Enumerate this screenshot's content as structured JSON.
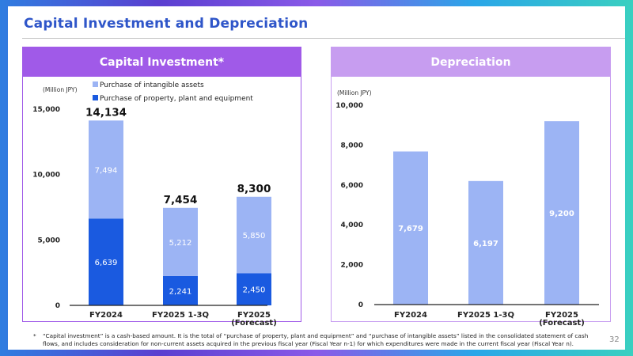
{
  "page_title": "Capital Investment and Depreciation",
  "page_number": "32",
  "footnote_marker": "*",
  "footnote": "“Capital investment” is a cash-based amount. It is the total of “purchase of property, plant and equipment” and “purchase of intangible assets” listed in the consolidated statement of cash flows, and includes consideration for non-current assets acquired in the previous fiscal year (Fiscal Year n-1) for which expenditures were made in the current fiscal year (Fiscal Year n).",
  "colors": {
    "title": "#2f56c9",
    "ppe": "#1a5ae0",
    "intangible": "#9cb4f4",
    "depreciation": "#9cb4f4",
    "left_header": "#a05ae8",
    "right_header": "#c79df0"
  },
  "chart_data": [
    {
      "type": "bar",
      "stacked": true,
      "title": "Capital Investment*",
      "unit_label": "(Million JPY)",
      "categories": [
        "FY2024",
        "FY2025 1-3Q",
        "FY2025\n(Forecast)"
      ],
      "category_lines": [
        [
          "FY2024"
        ],
        [
          "FY2025 1-3Q"
        ],
        [
          "FY2025",
          "(Forecast)"
        ]
      ],
      "series": [
        {
          "name": "Purchase of property, plant and equipment",
          "values": [
            6639,
            2241,
            2450
          ],
          "labels": [
            "6,639",
            "2,241",
            "2,450"
          ]
        },
        {
          "name": "Purchase of intangible assets",
          "values": [
            7494,
            5212,
            5850
          ],
          "labels": [
            "7,494",
            "5,212",
            "5,850"
          ]
        }
      ],
      "totals": [
        14134,
        7454,
        8300
      ],
      "total_labels": [
        "14,134",
        "7,454",
        "8,300"
      ],
      "ylim": [
        0,
        15000
      ],
      "yticks": [
        0,
        5000,
        10000,
        15000
      ],
      "ytick_labels": [
        "0",
        "5,000",
        "10,000",
        "15,000"
      ],
      "legend": "top-left",
      "grid": false
    },
    {
      "type": "bar",
      "title": "Depreciation",
      "unit_label": "(Million JPY)",
      "categories": [
        "FY2024",
        "FY2025 1-3Q",
        "FY2025\n(Forecast)"
      ],
      "category_lines": [
        [
          "FY2024"
        ],
        [
          "FY2025 1-3Q"
        ],
        [
          "FY2025",
          "(Forecast)"
        ]
      ],
      "values": [
        7679,
        6197,
        9200
      ],
      "labels": [
        "7,679",
        "6,197",
        "9,200"
      ],
      "ylim": [
        0,
        10000
      ],
      "yticks": [
        0,
        2000,
        4000,
        6000,
        8000,
        10000
      ],
      "ytick_labels": [
        "0",
        "2,000",
        "4,000",
        "6,000",
        "8,000",
        "10,000"
      ],
      "grid": false
    }
  ]
}
